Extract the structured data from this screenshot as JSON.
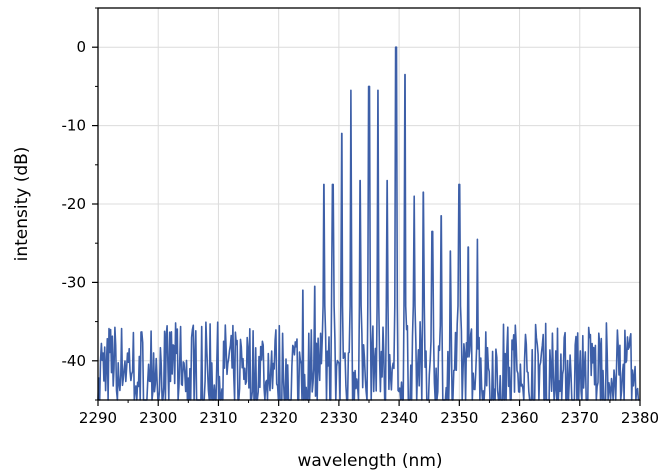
{
  "chart_data": {
    "type": "line",
    "title": "",
    "xlabel": "wavelength (nm)",
    "ylabel": "intensity (dB)",
    "xlim": [
      2290,
      2380
    ],
    "ylim": [
      -45,
      5
    ],
    "x_ticks": [
      2290,
      2300,
      2310,
      2320,
      2330,
      2340,
      2350,
      2360,
      2370,
      2380
    ],
    "y_ticks": [
      0,
      -10,
      -20,
      -30,
      -40
    ],
    "grid": true,
    "line_color": "#3d5fa8",
    "noise_floor_range": [
      -45,
      -35
    ],
    "peaks": [
      {
        "x": 2324.0,
        "y": -31.0
      },
      {
        "x": 2326.0,
        "y": -30.5
      },
      {
        "x": 2327.5,
        "y": -17.5
      },
      {
        "x": 2329.0,
        "y": -17.5
      },
      {
        "x": 2330.5,
        "y": -11.0
      },
      {
        "x": 2332.0,
        "y": -5.5
      },
      {
        "x": 2333.5,
        "y": -17.0
      },
      {
        "x": 2335.0,
        "y": -5.0
      },
      {
        "x": 2336.5,
        "y": -5.5
      },
      {
        "x": 2338.0,
        "y": -17.0
      },
      {
        "x": 2339.5,
        "y": 0.0
      },
      {
        "x": 2341.0,
        "y": -3.5
      },
      {
        "x": 2342.5,
        "y": -19.0
      },
      {
        "x": 2344.0,
        "y": -18.5
      },
      {
        "x": 2345.5,
        "y": -23.5
      },
      {
        "x": 2347.0,
        "y": -21.5
      },
      {
        "x": 2348.5,
        "y": -26.0
      },
      {
        "x": 2350.0,
        "y": -17.5
      },
      {
        "x": 2351.5,
        "y": -25.5
      },
      {
        "x": 2353.0,
        "y": -24.5
      }
    ]
  }
}
